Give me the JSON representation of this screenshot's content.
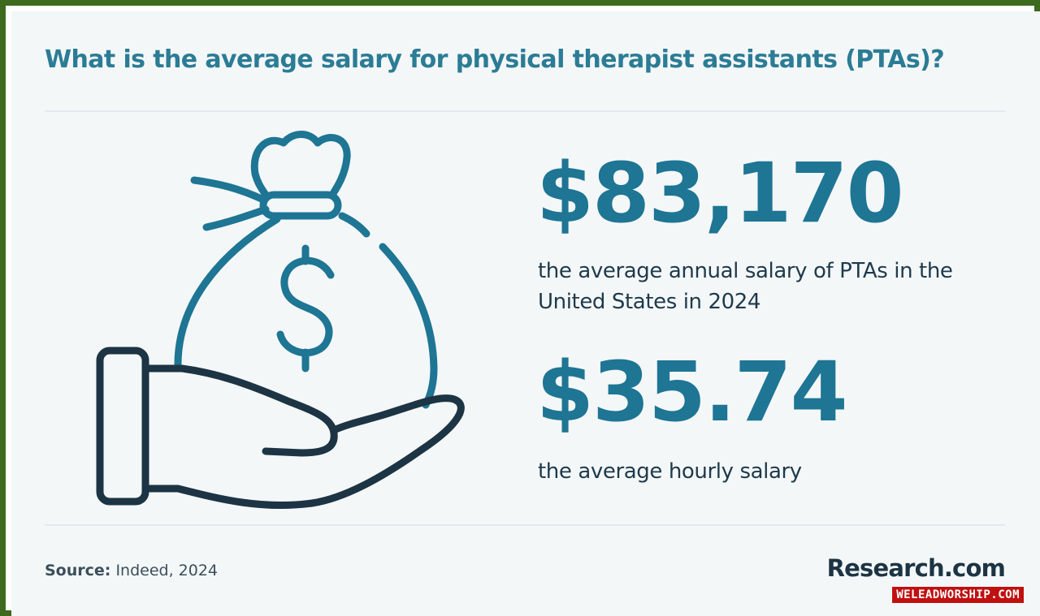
{
  "title": "What is the average salary for physical therapist assistants (PTAs)?",
  "stats": {
    "annual": {
      "value": "$83,170",
      "description": "the average annual salary of PTAs in the United States in 2024"
    },
    "hourly": {
      "value": "$35.74",
      "description": "the average hourly salary"
    }
  },
  "footer": {
    "source_label": "Source:",
    "source_value": "Indeed, 2024",
    "brand": "Research.com"
  },
  "watermark": "WELEADWORSHIP.COM",
  "illustration": {
    "icon": "money-bag-in-hand-icon",
    "bag_color": "#1e7594",
    "hand_color": "#1c3443"
  },
  "colors": {
    "accent": "#2b7c95",
    "border": "#3d6a1e",
    "background": "#f4f7f8",
    "text": "#1e3a4b"
  }
}
